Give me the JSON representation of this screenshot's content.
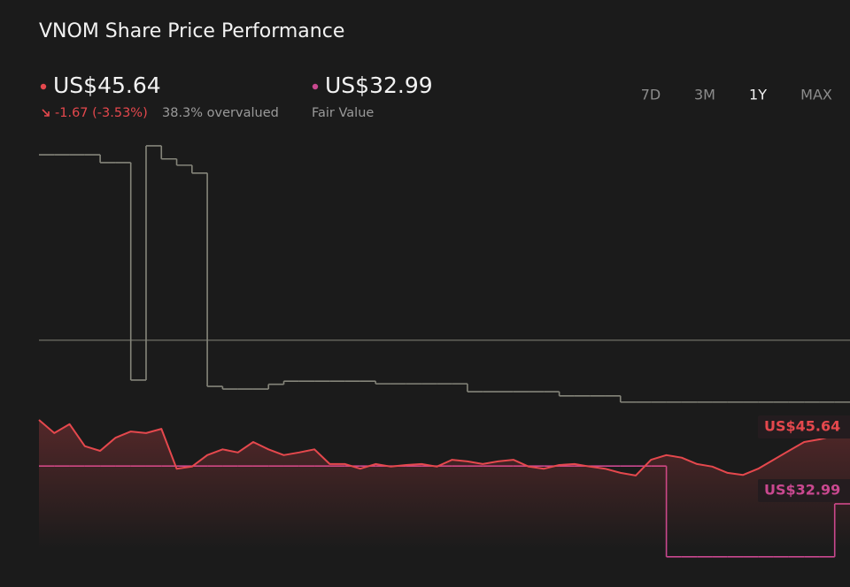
{
  "chart_data": {
    "type": "line",
    "title": "VNOM Share Price Performance",
    "change": "-1.67 (-3.53%)",
    "valuation": "38.3% overvalued",
    "ranges": [
      "7D",
      "3M",
      "1Y",
      "MAX"
    ],
    "active_range": "1Y",
    "ylim": [
      20,
      105
    ],
    "reference_line": 64.2,
    "series": [
      {
        "color": "#e5484d",
        "step": false,
        "area": true,
        "values": [
          49.0,
          46.5,
          48.2,
          44.0,
          43.1,
          45.6,
          46.8,
          46.5,
          47.3,
          39.7,
          40.1,
          42.3,
          43.4,
          42.8,
          44.8,
          43.4,
          42.3,
          42.8,
          43.4,
          40.6,
          40.6,
          39.7,
          40.6,
          40.1,
          40.4,
          40.6,
          40.1,
          41.4,
          41.1,
          40.6,
          41.1,
          41.4,
          40.1,
          39.7,
          40.4,
          40.6,
          40.1,
          39.7,
          38.9,
          38.4,
          41.4,
          42.3,
          41.8,
          40.6,
          40.1,
          38.9,
          38.5,
          39.7,
          41.4,
          43.1,
          44.8,
          45.3,
          46.0,
          45.64
        ],
        "value_labels": [
          null,
          null,
          null,
          null,
          null,
          null,
          null,
          null,
          null,
          null,
          null,
          null,
          null,
          null,
          null,
          null,
          null,
          null,
          null,
          null,
          null,
          null,
          null,
          null,
          null,
          null,
          null,
          null,
          null,
          null,
          null,
          null,
          null,
          null,
          null,
          null,
          null,
          null,
          null,
          null,
          null,
          null,
          null,
          null,
          null,
          null,
          null,
          null,
          null,
          null,
          null,
          null,
          null,
          "US$45.64"
        ]
      },
      {
        "name": "Fair Value",
        "color": "#c9488f",
        "step": true,
        "area": false,
        "values": [
          40.2,
          40.2,
          40.2,
          40.2,
          40.2,
          40.2,
          40.2,
          40.2,
          40.2,
          40.2,
          40.2,
          40.2,
          40.2,
          40.2,
          40.2,
          40.2,
          40.2,
          40.2,
          40.2,
          40.2,
          40.2,
          40.2,
          40.2,
          40.2,
          40.2,
          40.2,
          40.2,
          40.2,
          40.2,
          40.2,
          40.2,
          40.2,
          40.2,
          40.2,
          40.2,
          40.2,
          40.2,
          40.2,
          40.2,
          40.2,
          40.2,
          22.9,
          22.9,
          22.9,
          22.9,
          22.9,
          22.9,
          22.9,
          22.9,
          22.9,
          22.9,
          22.9,
          32.99,
          32.99
        ],
        "value_labels": [
          null,
          null,
          null,
          null,
          null,
          null,
          null,
          null,
          null,
          null,
          null,
          null,
          null,
          null,
          null,
          null,
          null,
          null,
          null,
          null,
          null,
          null,
          null,
          null,
          null,
          null,
          null,
          null,
          null,
          null,
          null,
          null,
          null,
          null,
          null,
          null,
          null,
          null,
          null,
          null,
          null,
          null,
          null,
          null,
          null,
          null,
          null,
          null,
          null,
          null,
          null,
          null,
          null,
          "US$32.99"
        ]
      },
      {
        "color": "#85857a",
        "step": true,
        "area": false,
        "values": [
          99.6,
          99.6,
          99.6,
          99.6,
          98.1,
          98.1,
          56.6,
          101.3,
          98.8,
          97.6,
          96.1,
          55.4,
          54.9,
          54.9,
          54.9,
          55.8,
          56.4,
          56.4,
          56.4,
          56.4,
          56.4,
          56.4,
          55.9,
          55.9,
          55.9,
          55.9,
          55.9,
          55.9,
          54.4,
          54.4,
          54.4,
          54.4,
          54.4,
          54.4,
          53.6,
          53.6,
          53.6,
          53.6,
          52.4,
          52.4,
          52.4,
          52.4,
          52.4,
          52.4,
          52.4,
          52.4,
          52.4,
          52.4,
          52.4,
          52.4,
          52.4,
          52.4,
          52.4,
          52.4
        ]
      }
    ]
  }
}
